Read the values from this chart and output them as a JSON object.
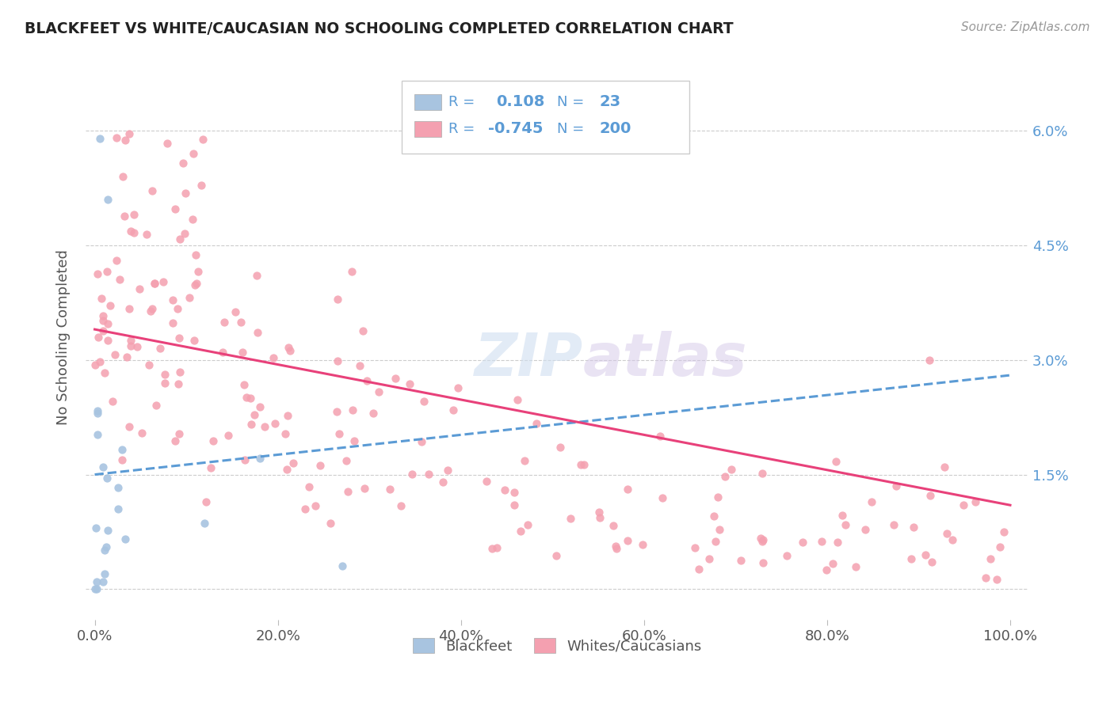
{
  "title": "BLACKFEET VS WHITE/CAUCASIAN NO SCHOOLING COMPLETED CORRELATION CHART",
  "source": "Source: ZipAtlas.com",
  "ylabel": "No Schooling Completed",
  "blackfeet_R": 0.108,
  "blackfeet_N": 23,
  "white_R": -0.745,
  "white_N": 200,
  "blackfeet_color": "#a8c4e0",
  "white_color": "#f4a0b0",
  "blackfeet_line_color": "#5b9bd5",
  "white_line_color": "#e8417a",
  "ytick_values": [
    0.0,
    0.015,
    0.03,
    0.045,
    0.06
  ],
  "ytick_labels": [
    "",
    "1.5%",
    "3.0%",
    "4.5%",
    "6.0%"
  ],
  "xtick_values": [
    0.0,
    0.2,
    0.4,
    0.6,
    0.8,
    1.0
  ],
  "xtick_labels": [
    "0.0%",
    "20.0%",
    "40.0%",
    "60.0%",
    "80.0%",
    "100.0%"
  ],
  "white_line_start_y": 0.034,
  "white_line_end_y": 0.011,
  "blackfeet_line_start_y": 0.015,
  "blackfeet_line_end_y": 0.028,
  "legend_text_color": "#5b9bd5",
  "watermark_zip_color": "#d0dff0",
  "watermark_atlas_color": "#d4c8e8"
}
